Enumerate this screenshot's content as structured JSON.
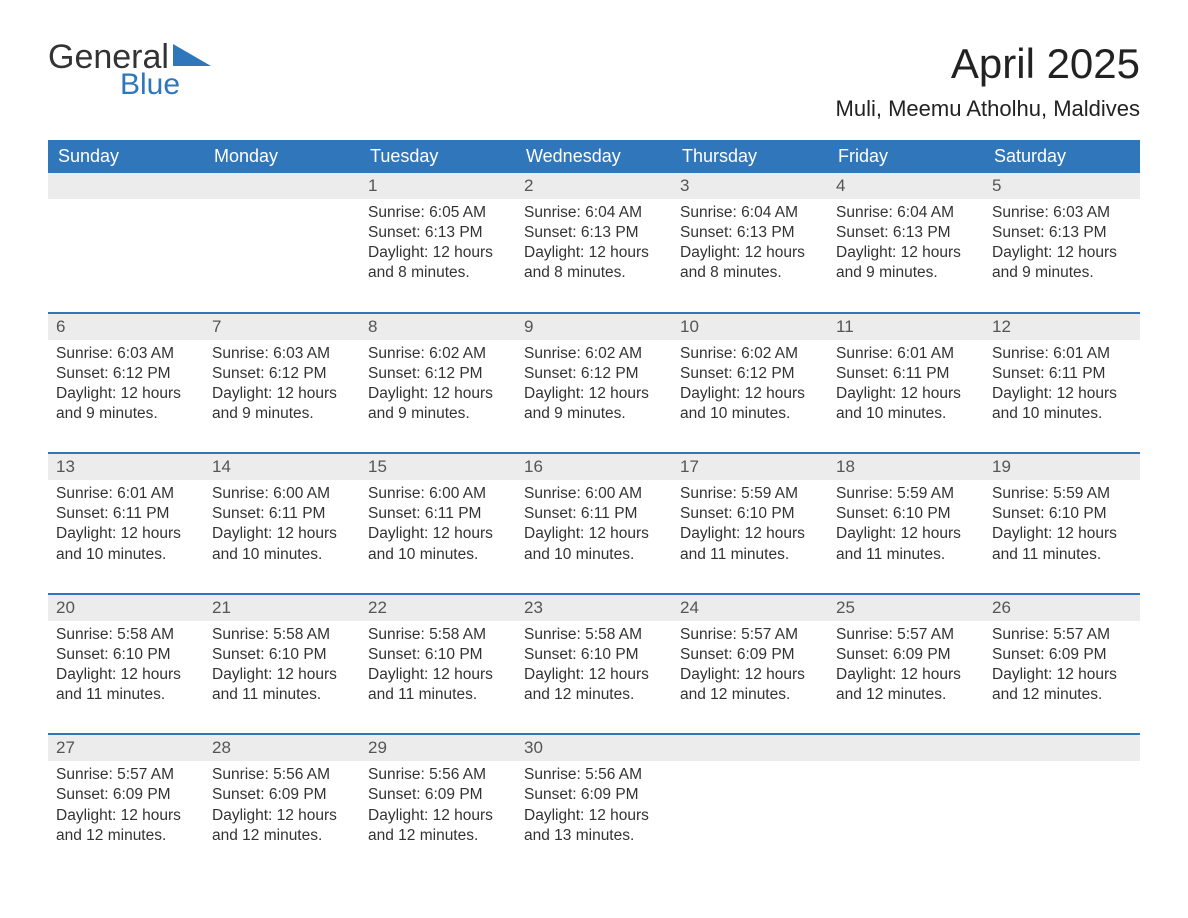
{
  "logo": {
    "text1": "General",
    "text2": "Blue",
    "accent": "#2f76bb"
  },
  "title": "April 2025",
  "location": "Muli, Meemu Atholhu, Maldives",
  "dayNames": [
    "Sunday",
    "Monday",
    "Tuesday",
    "Wednesday",
    "Thursday",
    "Friday",
    "Saturday"
  ],
  "colors": {
    "header_bg": "#2f76bb",
    "header_text": "#ffffff",
    "daynum_bg": "#ececec",
    "row_divider": "#2f76bb",
    "body_text": "#333333"
  },
  "font": {
    "family": "Arial",
    "title_size_pt": 32,
    "location_size_pt": 17,
    "th_size_pt": 14,
    "cell_size_pt": 12
  },
  "calendar": {
    "type": "table",
    "columns": 7,
    "weeks": [
      [
        null,
        null,
        {
          "n": "1",
          "sunrise": "6:05 AM",
          "sunset": "6:13 PM",
          "daylight": "12 hours and 8 minutes."
        },
        {
          "n": "2",
          "sunrise": "6:04 AM",
          "sunset": "6:13 PM",
          "daylight": "12 hours and 8 minutes."
        },
        {
          "n": "3",
          "sunrise": "6:04 AM",
          "sunset": "6:13 PM",
          "daylight": "12 hours and 8 minutes."
        },
        {
          "n": "4",
          "sunrise": "6:04 AM",
          "sunset": "6:13 PM",
          "daylight": "12 hours and 9 minutes."
        },
        {
          "n": "5",
          "sunrise": "6:03 AM",
          "sunset": "6:13 PM",
          "daylight": "12 hours and 9 minutes."
        }
      ],
      [
        {
          "n": "6",
          "sunrise": "6:03 AM",
          "sunset": "6:12 PM",
          "daylight": "12 hours and 9 minutes."
        },
        {
          "n": "7",
          "sunrise": "6:03 AM",
          "sunset": "6:12 PM",
          "daylight": "12 hours and 9 minutes."
        },
        {
          "n": "8",
          "sunrise": "6:02 AM",
          "sunset": "6:12 PM",
          "daylight": "12 hours and 9 minutes."
        },
        {
          "n": "9",
          "sunrise": "6:02 AM",
          "sunset": "6:12 PM",
          "daylight": "12 hours and 9 minutes."
        },
        {
          "n": "10",
          "sunrise": "6:02 AM",
          "sunset": "6:12 PM",
          "daylight": "12 hours and 10 minutes."
        },
        {
          "n": "11",
          "sunrise": "6:01 AM",
          "sunset": "6:11 PM",
          "daylight": "12 hours and 10 minutes."
        },
        {
          "n": "12",
          "sunrise": "6:01 AM",
          "sunset": "6:11 PM",
          "daylight": "12 hours and 10 minutes."
        }
      ],
      [
        {
          "n": "13",
          "sunrise": "6:01 AM",
          "sunset": "6:11 PM",
          "daylight": "12 hours and 10 minutes."
        },
        {
          "n": "14",
          "sunrise": "6:00 AM",
          "sunset": "6:11 PM",
          "daylight": "12 hours and 10 minutes."
        },
        {
          "n": "15",
          "sunrise": "6:00 AM",
          "sunset": "6:11 PM",
          "daylight": "12 hours and 10 minutes."
        },
        {
          "n": "16",
          "sunrise": "6:00 AM",
          "sunset": "6:11 PM",
          "daylight": "12 hours and 10 minutes."
        },
        {
          "n": "17",
          "sunrise": "5:59 AM",
          "sunset": "6:10 PM",
          "daylight": "12 hours and 11 minutes."
        },
        {
          "n": "18",
          "sunrise": "5:59 AM",
          "sunset": "6:10 PM",
          "daylight": "12 hours and 11 minutes."
        },
        {
          "n": "19",
          "sunrise": "5:59 AM",
          "sunset": "6:10 PM",
          "daylight": "12 hours and 11 minutes."
        }
      ],
      [
        {
          "n": "20",
          "sunrise": "5:58 AM",
          "sunset": "6:10 PM",
          "daylight": "12 hours and 11 minutes."
        },
        {
          "n": "21",
          "sunrise": "5:58 AM",
          "sunset": "6:10 PM",
          "daylight": "12 hours and 11 minutes."
        },
        {
          "n": "22",
          "sunrise": "5:58 AM",
          "sunset": "6:10 PM",
          "daylight": "12 hours and 11 minutes."
        },
        {
          "n": "23",
          "sunrise": "5:58 AM",
          "sunset": "6:10 PM",
          "daylight": "12 hours and 12 minutes."
        },
        {
          "n": "24",
          "sunrise": "5:57 AM",
          "sunset": "6:09 PM",
          "daylight": "12 hours and 12 minutes."
        },
        {
          "n": "25",
          "sunrise": "5:57 AM",
          "sunset": "6:09 PM",
          "daylight": "12 hours and 12 minutes."
        },
        {
          "n": "26",
          "sunrise": "5:57 AM",
          "sunset": "6:09 PM",
          "daylight": "12 hours and 12 minutes."
        }
      ],
      [
        {
          "n": "27",
          "sunrise": "5:57 AM",
          "sunset": "6:09 PM",
          "daylight": "12 hours and 12 minutes."
        },
        {
          "n": "28",
          "sunrise": "5:56 AM",
          "sunset": "6:09 PM",
          "daylight": "12 hours and 12 minutes."
        },
        {
          "n": "29",
          "sunrise": "5:56 AM",
          "sunset": "6:09 PM",
          "daylight": "12 hours and 12 minutes."
        },
        {
          "n": "30",
          "sunrise": "5:56 AM",
          "sunset": "6:09 PM",
          "daylight": "12 hours and 13 minutes."
        },
        null,
        null,
        null
      ]
    ]
  },
  "labels": {
    "sunrise": "Sunrise: ",
    "sunset": "Sunset: ",
    "daylight": "Daylight: "
  }
}
